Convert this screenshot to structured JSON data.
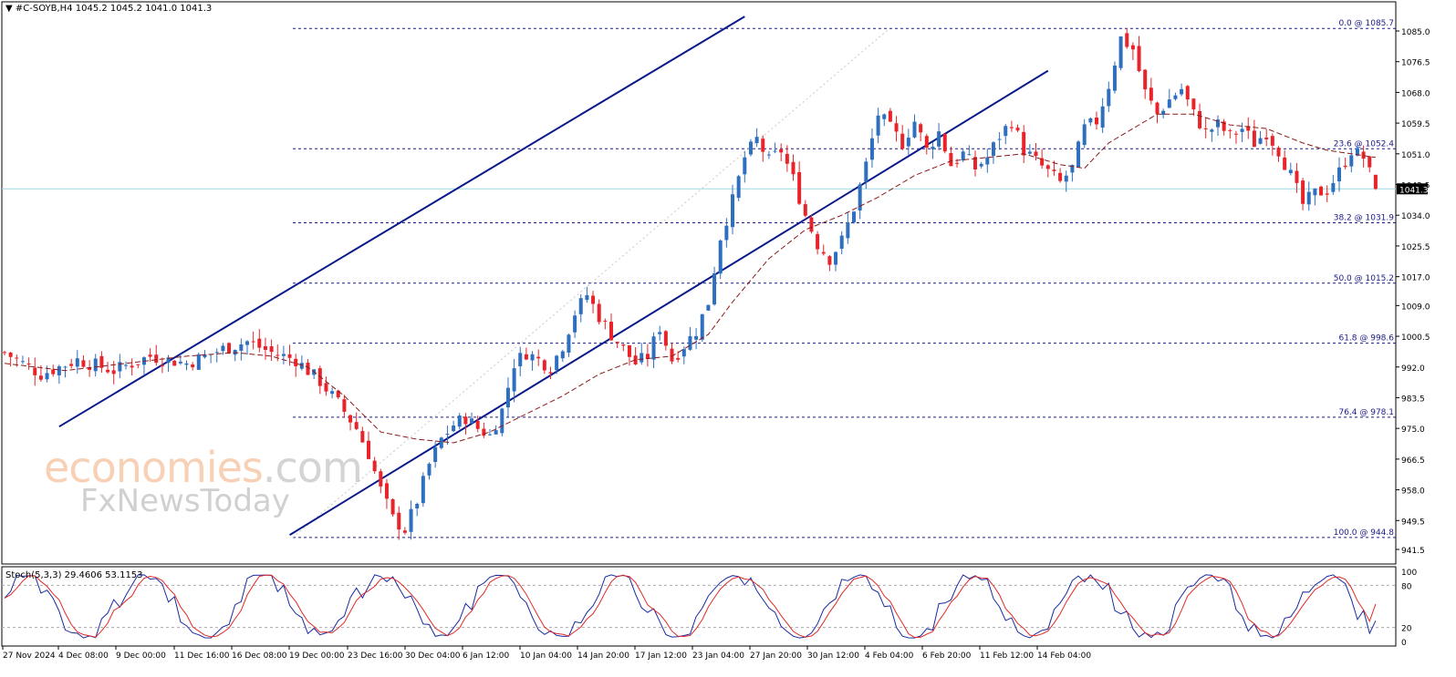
{
  "header": {
    "menu_icon": "triangle-down-icon",
    "symbol_line": "#C-SOYB,H4  1045.2 1045.2 1041.0 1041.3"
  },
  "watermark": {
    "main": "economies",
    "main_suffix": ".com",
    "sub": "FxNewsToday"
  },
  "price_tag": "1041.3",
  "stoch_header": "Stoch(5,3,3) 29.4606 53.1153",
  "colors": {
    "bull": "#2f6fbf",
    "bear": "#e8232a",
    "trendline": "#0a1a8a",
    "ma": "#8b1a1a",
    "fib": "#1a1a8a",
    "current_price_line": "#9fd8e0",
    "stoch_main": "#1a2aa0",
    "stoch_signal": "#e02a2a"
  },
  "chart_data": {
    "type": "candlestick",
    "symbol": "#C-SOYB",
    "timeframe": "H4",
    "ohlc_current": {
      "open": 1045.2,
      "high": 1045.2,
      "low": 1041.0,
      "close": 1041.3
    },
    "ylim": [
      941.5,
      1085.0
    ],
    "y_ticks": [
      "1085.0",
      "1076.5",
      "1068.0",
      "1059.5",
      "1051.0",
      "1042.5",
      "1034.0",
      "1025.5",
      "1017.0",
      "1009.0",
      "1000.5",
      "992.0",
      "983.5",
      "975.0",
      "966.5",
      "958.0",
      "949.5",
      "941.5"
    ],
    "x_ticks": [
      "27 Nov 2024",
      "4 Dec 08:00",
      "9 Dec 00:00",
      "11 Dec 16:00",
      "16 Dec 08:00",
      "19 Dec 00:00",
      "23 Dec 16:00",
      "30 Dec 04:00",
      "6 Jan 12:00",
      "10 Jan 04:00",
      "14 Jan 20:00",
      "17 Jan 12:00",
      "23 Jan 04:00",
      "27 Jan 20:00",
      "30 Jan 12:00",
      "4 Feb 04:00",
      "6 Feb 20:00",
      "11 Feb 12:00",
      "14 Feb 04:00"
    ],
    "fib_levels": [
      {
        "label": "0.0 @ 1085.7",
        "value": 1085.7
      },
      {
        "label": "23.6 @ 1052.4",
        "value": 1052.4
      },
      {
        "label": "38.2 @ 1031.9",
        "value": 1031.9
      },
      {
        "label": "50.0 @ 1015.2",
        "value": 1015.2
      },
      {
        "label": "61.8 @ 998.6",
        "value": 998.6
      },
      {
        "label": "76.4 @ 978.1",
        "value": 978.1
      },
      {
        "label": "100.0 @ 944.8",
        "value": 944.8
      }
    ],
    "close_path": [
      [
        0,
        996
      ],
      [
        6,
        990
      ],
      [
        12,
        994
      ],
      [
        18,
        991
      ],
      [
        24,
        995
      ],
      [
        30,
        993
      ],
      [
        36,
        997
      ],
      [
        40,
        999
      ],
      [
        44,
        996
      ],
      [
        48,
        994
      ],
      [
        52,
        988
      ],
      [
        55,
        982
      ],
      [
        58,
        975
      ],
      [
        60,
        968
      ],
      [
        62,
        958
      ],
      [
        64,
        950
      ],
      [
        66,
        947
      ],
      [
        68,
        955
      ],
      [
        70,
        965
      ],
      [
        72,
        972
      ],
      [
        74,
        976
      ],
      [
        76,
        978
      ],
      [
        78,
        975
      ],
      [
        80,
        973
      ],
      [
        82,
        980
      ],
      [
        84,
        993
      ],
      [
        86,
        996
      ],
      [
        88,
        994
      ],
      [
        90,
        992
      ],
      [
        92,
        998
      ],
      [
        94,
        1007
      ],
      [
        96,
        1012
      ],
      [
        98,
        1006
      ],
      [
        100,
        1001
      ],
      [
        102,
        997
      ],
      [
        104,
        993
      ],
      [
        106,
        995
      ],
      [
        108,
        1003
      ],
      [
        110,
        994
      ],
      [
        112,
        998
      ],
      [
        114,
        1002
      ],
      [
        116,
        1010
      ],
      [
        118,
        1028
      ],
      [
        120,
        1038
      ],
      [
        122,
        1050
      ],
      [
        124,
        1055
      ],
      [
        126,
        1049
      ],
      [
        128,
        1052
      ],
      [
        130,
        1044
      ],
      [
        132,
        1034
      ],
      [
        134,
        1026
      ],
      [
        136,
        1022
      ],
      [
        138,
        1027
      ],
      [
        140,
        1036
      ],
      [
        142,
        1048
      ],
      [
        144,
        1062
      ],
      [
        146,
        1058
      ],
      [
        148,
        1054
      ],
      [
        150,
        1060
      ],
      [
        152,
        1052
      ],
      [
        154,
        1057
      ],
      [
        156,
        1048
      ],
      [
        158,
        1051
      ],
      [
        160,
        1047
      ],
      [
        162,
        1050
      ],
      [
        164,
        1056
      ],
      [
        166,
        1060
      ],
      [
        168,
        1052
      ],
      [
        170,
        1049
      ],
      [
        172,
        1046
      ],
      [
        174,
        1043
      ],
      [
        176,
        1047
      ],
      [
        178,
        1058
      ],
      [
        180,
        1060
      ],
      [
        182,
        1070
      ],
      [
        184,
        1083
      ],
      [
        186,
        1080
      ],
      [
        188,
        1068
      ],
      [
        190,
        1062
      ],
      [
        192,
        1066
      ],
      [
        194,
        1069
      ],
      [
        196,
        1062
      ],
      [
        198,
        1057
      ],
      [
        200,
        1059
      ],
      [
        202,
        1056
      ],
      [
        204,
        1058
      ],
      [
        206,
        1054
      ],
      [
        208,
        1057
      ],
      [
        210,
        1052
      ],
      [
        212,
        1045
      ],
      [
        214,
        1037
      ],
      [
        216,
        1040
      ],
      [
        218,
        1041
      ],
      [
        220,
        1046
      ],
      [
        222,
        1052
      ],
      [
        224,
        1050
      ],
      [
        226,
        1041.3
      ]
    ],
    "moving_average": [
      [
        0,
        993
      ],
      [
        10,
        991
      ],
      [
        20,
        993
      ],
      [
        30,
        995
      ],
      [
        38,
        996
      ],
      [
        44,
        995
      ],
      [
        50,
        992
      ],
      [
        56,
        984
      ],
      [
        62,
        974
      ],
      [
        68,
        972
      ],
      [
        74,
        971
      ],
      [
        80,
        974
      ],
      [
        86,
        979
      ],
      [
        92,
        984
      ],
      [
        98,
        990
      ],
      [
        104,
        994
      ],
      [
        110,
        995
      ],
      [
        116,
        1001
      ],
      [
        120,
        1010
      ],
      [
        126,
        1022
      ],
      [
        132,
        1030
      ],
      [
        138,
        1034
      ],
      [
        144,
        1039
      ],
      [
        150,
        1045
      ],
      [
        156,
        1049
      ],
      [
        162,
        1050
      ],
      [
        168,
        1051
      ],
      [
        174,
        1048
      ],
      [
        178,
        1047
      ],
      [
        182,
        1054
      ],
      [
        186,
        1058
      ],
      [
        190,
        1062
      ],
      [
        196,
        1062
      ],
      [
        202,
        1059
      ],
      [
        208,
        1058
      ],
      [
        214,
        1054
      ],
      [
        218,
        1052
      ],
      [
        222,
        1051
      ],
      [
        226,
        1050
      ]
    ],
    "trendlines": [
      {
        "name": "channel-upper",
        "from": [
          9,
          975.5
        ],
        "to": [
          122,
          1089
        ]
      },
      {
        "name": "channel-upper-mid",
        "from": [
          122,
          1089
        ],
        "to": [
          160,
          1089
        ]
      },
      {
        "name": "channel-lower",
        "from": [
          47,
          945.5
        ],
        "to": [
          172,
          1074
        ]
      }
    ],
    "stochastic": {
      "params": "Stoch(5,3,3)",
      "main": 29.4606,
      "signal": 53.1153,
      "levels": [
        20,
        80
      ],
      "y_ticks": [
        "100",
        "80",
        "20",
        "0"
      ]
    }
  }
}
